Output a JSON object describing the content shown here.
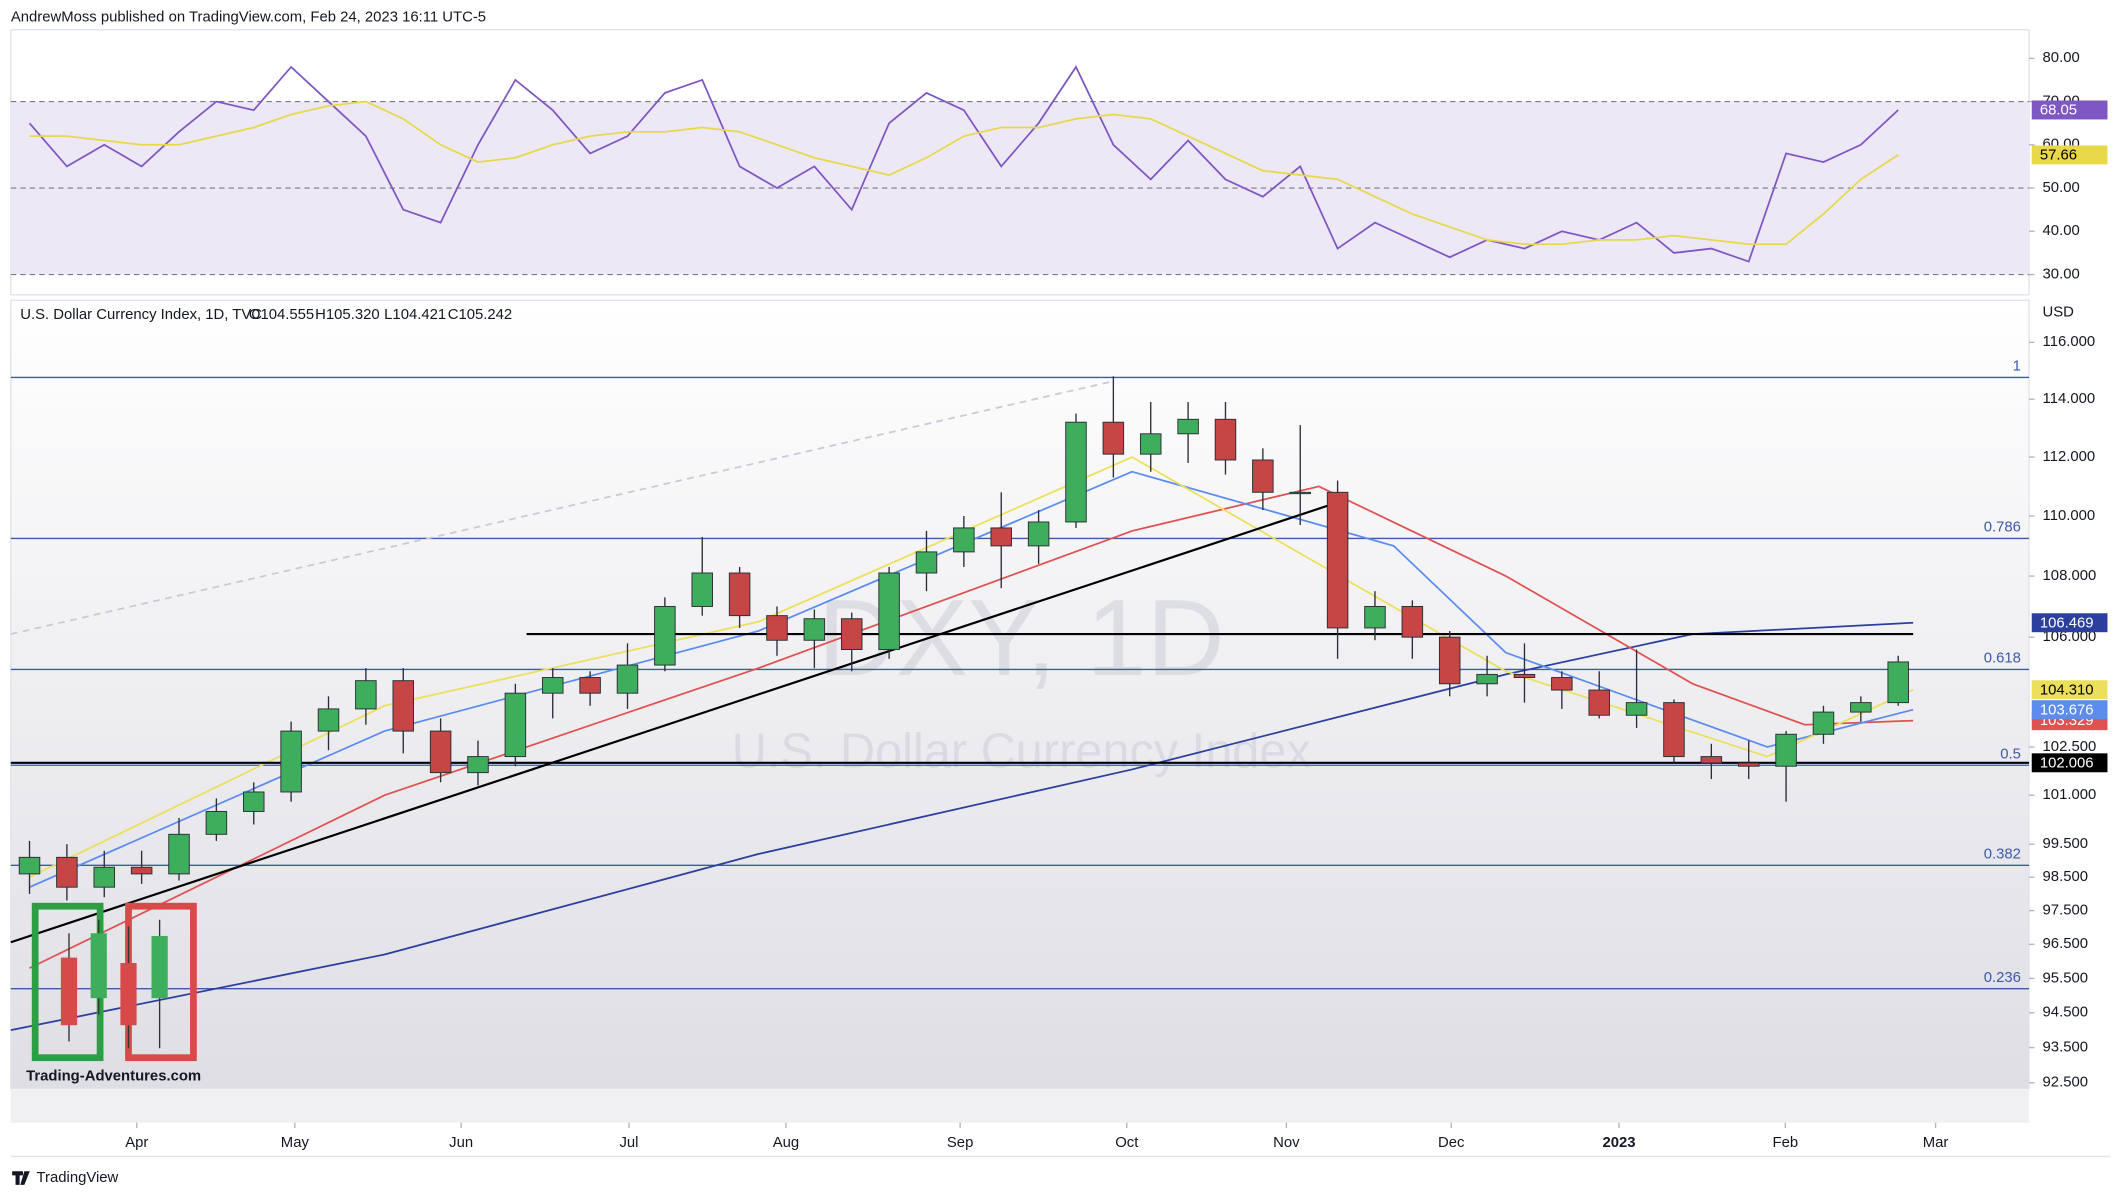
{
  "header": "AndrewMoss published on TradingView.com, Feb 24, 2023 16:11 UTC-5",
  "footer": "TradingView",
  "logo_text": "Trading-Adventures.com",
  "chart_data": [
    {
      "type": "line",
      "xlim": [
        0,
        54
      ],
      "ylim": [
        25.3,
        86.6
      ],
      "yticks": [
        {
          "value": 80,
          "label": "80.00"
        },
        {
          "value": 70,
          "label": "70.00"
        },
        {
          "value": 60,
          "label": "60.00"
        },
        {
          "value": 50,
          "label": "50.00"
        },
        {
          "value": 40,
          "label": "40.00"
        },
        {
          "value": 30,
          "label": "30.00"
        }
      ],
      "band": [
        30,
        70
      ],
      "band_color": "#ece8f6",
      "levels": [
        30,
        50,
        70
      ],
      "x": [
        0.5,
        1.5,
        2.5,
        3.5,
        4.5,
        5.5,
        6.5,
        7.5,
        8.5,
        9.5,
        10.5,
        11.5,
        12.5,
        13.5,
        14.5,
        15.5,
        16.5,
        17.5,
        18.5,
        19.5,
        20.5,
        21.5,
        22.5,
        23.5,
        24.5,
        25.5,
        26.5,
        27.5,
        28.5,
        29.5,
        30.5,
        31.5,
        32.5,
        33.5,
        34.5,
        35.5,
        36.5,
        37.5,
        38.5,
        39.5,
        40.5,
        41.5,
        42.5,
        43.5,
        44.5,
        45.5,
        46.5,
        47.5,
        48.5,
        49.5,
        50.5
      ],
      "series": [
        {
          "color": "#7e57c2",
          "values": [
            65,
            55,
            60,
            55,
            63,
            70,
            68,
            78,
            70,
            62,
            45,
            42,
            60,
            75,
            68,
            58,
            62,
            72,
            75,
            55,
            50,
            55,
            45,
            65,
            72,
            68,
            55,
            65,
            78,
            60,
            52,
            61,
            52,
            48,
            55,
            36,
            42,
            38,
            34,
            38,
            36,
            40,
            38,
            42,
            35,
            36,
            33,
            58,
            56,
            60,
            68.05
          ]
        },
        {
          "color": "#e8d84a",
          "values": [
            62,
            62,
            61,
            60,
            60,
            62,
            64,
            67,
            69,
            70,
            66,
            60,
            56,
            57,
            60,
            62,
            63,
            63,
            64,
            63,
            60,
            57,
            55,
            53,
            57,
            62,
            64,
            64,
            66,
            67,
            66,
            62,
            58,
            54,
            53,
            52,
            48,
            44,
            41,
            38,
            37,
            37,
            38,
            38,
            39,
            38,
            37,
            37,
            44,
            52,
            57.66
          ]
        }
      ]
    },
    {
      "type": "candlestick",
      "symbol_info": "U.S. Dollar Currency Index, 1D, TVC",
      "ohlc_legend": [
        "O104.555",
        "H105.320",
        "L104.421",
        "C105.242"
      ],
      "currency": "USD",
      "watermark": [
        "DXY, 1D",
        "U.S. Dollar Currency Index"
      ],
      "log_scale": true,
      "xlim": [
        0,
        54
      ],
      "ylim": [
        92.33,
        117.5
      ],
      "xticks": [
        {
          "value": 3.37,
          "label": "Apr"
        },
        {
          "value": 7.6,
          "label": "May"
        },
        {
          "value": 12.05,
          "label": "Jun"
        },
        {
          "value": 16.54,
          "label": "Jul"
        },
        {
          "value": 20.74,
          "label": "Aug"
        },
        {
          "value": 25.4,
          "label": "Sep"
        },
        {
          "value": 29.86,
          "label": "Oct"
        },
        {
          "value": 34.13,
          "label": "Nov"
        },
        {
          "value": 38.54,
          "label": "Dec"
        },
        {
          "value": 43.03,
          "label": "2023"
        },
        {
          "value": 47.48,
          "label": "Feb"
        },
        {
          "value": 51.5,
          "label": "Mar"
        }
      ],
      "yticks": [
        {
          "value": 116,
          "label": "116.000"
        },
        {
          "value": 114,
          "label": "114.000"
        },
        {
          "value": 112,
          "label": "112.000"
        },
        {
          "value": 110,
          "label": "110.000"
        },
        {
          "value": 108,
          "label": "108.000"
        },
        {
          "value": 106,
          "label": "106.000"
        },
        {
          "value": 102.5,
          "label": "102.500"
        },
        {
          "value": 101,
          "label": "101.000"
        },
        {
          "value": 99.5,
          "label": "99.500"
        },
        {
          "value": 98.5,
          "label": "98.500"
        },
        {
          "value": 97.5,
          "label": "97.500"
        },
        {
          "value": 96.5,
          "label": "96.500"
        },
        {
          "value": 95.5,
          "label": "95.500"
        },
        {
          "value": 94.5,
          "label": "94.500"
        },
        {
          "value": 93.5,
          "label": "93.500"
        },
        {
          "value": 92.5,
          "label": "92.500"
        }
      ],
      "up_color": "#3fae5c",
      "down_color": "#c64545",
      "x": [
        0.5,
        1.5,
        2.5,
        3.5,
        4.5,
        5.5,
        6.5,
        7.5,
        8.5,
        9.5,
        10.5,
        11.5,
        12.5,
        13.5,
        14.5,
        15.5,
        16.5,
        17.5,
        18.5,
        19.5,
        20.5,
        21.5,
        22.5,
        23.5,
        24.5,
        25.5,
        26.5,
        27.5,
        28.5,
        29.5,
        30.5,
        31.5,
        32.5,
        33.5,
        34.5,
        35.5,
        36.5,
        37.5,
        38.5,
        39.5,
        40.5,
        41.5,
        42.5,
        43.5,
        44.5,
        45.5,
        46.5,
        47.5,
        48.5,
        49.5,
        50.5
      ],
      "open": [
        98.6,
        99.1,
        98.2,
        98.8,
        98.6,
        99.8,
        100.5,
        101.1,
        103.0,
        103.7,
        104.6,
        103.0,
        101.7,
        102.2,
        104.2,
        104.7,
        104.2,
        105.1,
        107.0,
        108.1,
        106.7,
        105.9,
        106.6,
        105.6,
        108.1,
        108.8,
        109.6,
        109.0,
        109.8,
        113.2,
        112.1,
        112.8,
        113.3,
        111.9,
        110.8,
        110.8,
        106.3,
        107.0,
        106.0,
        104.5,
        104.8,
        104.7,
        104.3,
        103.5,
        103.9,
        102.2,
        102.0,
        101.9,
        102.9,
        103.6,
        103.9
      ],
      "high": [
        99.6,
        99.5,
        99.3,
        99.3,
        100.3,
        100.9,
        101.4,
        103.3,
        104.1,
        105.0,
        105.0,
        103.4,
        102.7,
        104.5,
        105.0,
        104.9,
        105.8,
        107.3,
        109.3,
        108.3,
        107.0,
        106.9,
        106.8,
        108.3,
        109.5,
        110.0,
        110.8,
        110.2,
        113.5,
        114.8,
        113.9,
        113.9,
        113.9,
        112.3,
        113.1,
        111.2,
        107.5,
        107.2,
        106.2,
        105.4,
        105.8,
        104.9,
        104.9,
        105.6,
        104.0,
        102.6,
        102.7,
        103.0,
        103.8,
        104.1,
        105.4
      ],
      "low": [
        98.0,
        97.8,
        97.9,
        98.3,
        98.4,
        99.6,
        100.1,
        100.8,
        102.4,
        103.2,
        102.3,
        101.4,
        101.3,
        101.9,
        103.4,
        103.8,
        103.7,
        104.9,
        106.7,
        106.3,
        105.4,
        105.0,
        104.9,
        105.3,
        107.5,
        108.3,
        107.6,
        108.4,
        109.6,
        111.3,
        111.5,
        111.8,
        111.4,
        110.2,
        109.7,
        105.3,
        105.9,
        105.3,
        104.1,
        104.1,
        103.9,
        103.7,
        103.4,
        103.1,
        102.0,
        101.5,
        101.5,
        100.8,
        102.6,
        103.3,
        103.8
      ],
      "close": [
        99.1,
        98.2,
        98.8,
        98.6,
        99.8,
        100.5,
        101.1,
        103.0,
        103.7,
        104.6,
        103.0,
        101.7,
        102.2,
        104.2,
        104.7,
        104.2,
        105.1,
        107.0,
        108.1,
        106.7,
        105.9,
        106.6,
        105.6,
        108.1,
        108.8,
        109.6,
        109.0,
        109.8,
        113.2,
        112.1,
        112.8,
        113.3,
        111.9,
        110.8,
        110.8,
        106.3,
        107.0,
        106.0,
        104.5,
        104.8,
        104.7,
        104.3,
        103.5,
        103.9,
        102.2,
        102.0,
        101.9,
        102.9,
        103.6,
        103.9,
        105.2
      ],
      "overlays": [
        {
          "color": "#2b3f9e",
          "x": [
            0,
            10,
            20,
            30,
            40,
            45,
            50.9
          ],
          "values": [
            94.0,
            96.2,
            99.2,
            101.8,
            104.8,
            106.1,
            106.469
          ],
          "tag_label": "106.469",
          "tag_text_color": "#ffffff"
        },
        {
          "color": "#e05252",
          "x": [
            0.5,
            10,
            20,
            30,
            35,
            40,
            45,
            48,
            50.9
          ],
          "values": [
            95.8,
            101,
            105,
            109.5,
            111,
            108,
            104.5,
            103.2,
            103.329
          ],
          "tag_label": "103.329",
          "tag_text_color": "#ffffff"
        },
        {
          "color": "#5b8def",
          "x": [
            0.5,
            10,
            20,
            30,
            37,
            40,
            47,
            50.9
          ],
          "values": [
            98.2,
            103,
            106.2,
            111.5,
            109,
            105.5,
            102.5,
            103.676
          ],
          "tag_label": "103.676",
          "tag_text_color": "#ffffff"
        },
        {
          "color": "#ece05a",
          "x": [
            0.5,
            10,
            20,
            30,
            40,
            47,
            50.9
          ],
          "values": [
            98.5,
            103.8,
            106.5,
            112,
            104.9,
            102.2,
            104.31
          ],
          "tag_label": "104.310",
          "tag_text_color": "#000000"
        }
      ],
      "fib_color": "#3d5aa8",
      "fib_levels": [
        {
          "price": 114.76,
          "label": "1"
        },
        {
          "price": 109.25,
          "label": "0.786"
        },
        {
          "price": 104.96,
          "label": "0.618"
        },
        {
          "price": 101.93,
          "label": "0.5"
        },
        {
          "price": 98.86,
          "label": "0.382"
        },
        {
          "price": 95.2,
          "label": "0.236"
        }
      ],
      "drawings": [
        {
          "color": "#c9c9d8",
          "dashed": true,
          "x": [
            0,
            29.4
          ],
          "values": [
            106.1,
            114.6
          ]
        },
        {
          "color": "#000000",
          "x": [
            13.8,
            50.9
          ],
          "values": [
            106.1,
            106.1
          ]
        },
        {
          "color": "#000000",
          "x": [
            0,
            35.6
          ],
          "values": [
            96.56,
            110.5
          ]
        },
        {
          "color": "#000000",
          "x": [
            0,
            54
          ],
          "values": [
            102.006,
            102.006
          ],
          "tag_label": "102.006",
          "tag_text_color": "#ffffff"
        }
      ]
    }
  ]
}
